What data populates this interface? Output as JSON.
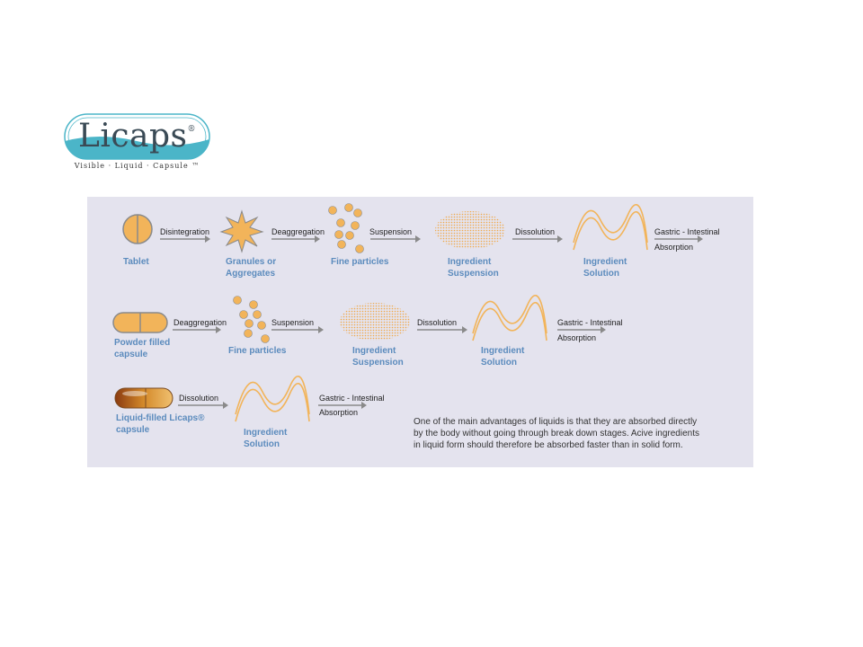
{
  "logo": {
    "name": "Licaps",
    "reg": "®",
    "tagline": "Visible · Liquid · Capsule ™"
  },
  "row1": {
    "tablet": "Tablet",
    "disintegration": "Disintegration",
    "granules_1": "Granules or",
    "granules_2": "Aggregates",
    "deaggregation": "Deaggregation",
    "fine_particles": "Fine particles",
    "suspension": "Suspension",
    "ing_susp_1": "Ingredient",
    "ing_susp_2": "Suspension",
    "dissolution": "Dissolution",
    "ing_sol_1": "Ingredient",
    "ing_sol_2": "Solution",
    "gastric": "Gastric - Intestinal",
    "absorption": "Absorption"
  },
  "row2": {
    "powder_1": "Powder filled",
    "powder_2": "capsule",
    "deaggregation": "Deaggregation",
    "fine_particles": "Fine particles",
    "suspension": "Suspension",
    "ing_susp_1": "Ingredient",
    "ing_susp_2": "Suspension",
    "dissolution": "Dissolution",
    "ing_sol_1": "Ingredient",
    "ing_sol_2": "Solution",
    "gastric": "Gastric - Intestinal",
    "absorption": "Absorption"
  },
  "row3": {
    "liquid_1": "Liquid-filled Licaps®",
    "liquid_2": "capsule",
    "dissolution": "Dissolution",
    "ing_sol_1": "Ingredient",
    "ing_sol_2": "Solution",
    "gastric": "Gastric - Intestinal",
    "absorption": "Absorption"
  },
  "note": {
    "line1": "One of the main advantages of liquids is that they are absorbed directly",
    "line2": "by the body without going through break down stages. Acive ingredients",
    "line3": "in liquid form should therefore be absorbed faster than in solid form."
  },
  "colors": {
    "orange": "#f2b45a",
    "blue_label": "#5b8bbd",
    "panel": "#e4e3ee",
    "teal": "#4bb5c8"
  }
}
